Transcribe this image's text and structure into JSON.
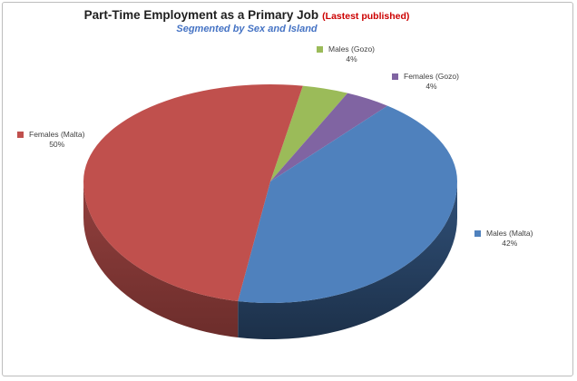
{
  "frame": {
    "border_color": "#BDBDBD",
    "background": "#FFFFFF"
  },
  "header": {
    "title": "Part-Time Employment as a Primary Job",
    "title_note": "(Lastest published)",
    "subtitle": "Segmented by Sex and Island",
    "title_color": "#1F1F1F",
    "note_color": "#CC0000",
    "subtitle_color": "#4573C4"
  },
  "chart_data": {
    "type": "pie",
    "style": "3d",
    "title": "Part-Time Employment as a Primary Job (Lastest published)",
    "subtitle": "Segmented by Sex and Island",
    "unit": "%",
    "rotation_deg": 10,
    "legend_position": "outside-data-labels",
    "label_text_color": "#3F3F3F",
    "slices": [
      {
        "label": "Males (Gozo)",
        "value": 4,
        "display": "4%",
        "color": "#9BBB59",
        "side_colors": [
          "#6F8740",
          "#55672F"
        ]
      },
      {
        "label": "Females (Gozo)",
        "value": 4,
        "display": "4%",
        "color": "#8064A2",
        "side_colors": [
          "#5C4876",
          "#46375A"
        ]
      },
      {
        "label": "Males (Malta)",
        "value": 42,
        "display": "42%",
        "color": "#4F81BD",
        "side_colors": [
          "#315179",
          "#1C3049"
        ]
      },
      {
        "label": "Females (Malta)",
        "value": 50,
        "display": "50%",
        "color": "#C0504D",
        "side_colors": [
          "#93403E",
          "#6C2D2B"
        ]
      }
    ]
  }
}
